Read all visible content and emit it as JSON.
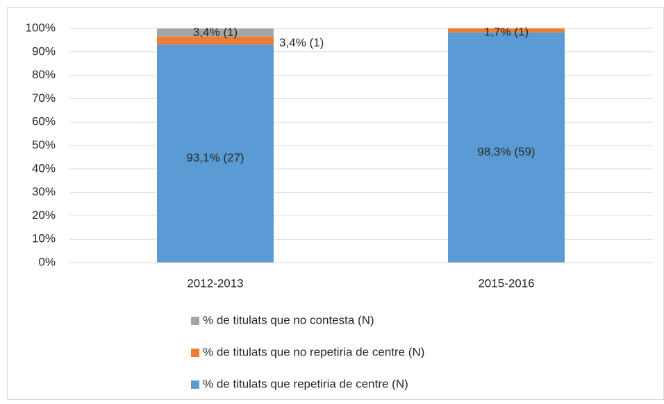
{
  "chart_data": {
    "type": "stacked_bar",
    "categories": [
      "2012-2013",
      "2015-2016"
    ],
    "series": [
      {
        "name": "% de titulats que repetiria de centre (N)",
        "color": "#5b9bd5",
        "values": [
          93.1,
          98.3
        ],
        "value_labels": [
          "93,1% (27)",
          "98,3% (59)"
        ]
      },
      {
        "name": "% de titulats que no repetiria de centre (N)",
        "color": "#ed7d31",
        "values": [
          3.4,
          1.7
        ],
        "value_labels": [
          "3,4% (1)",
          "1,7% (1)"
        ]
      },
      {
        "name": "% de titulats que no contesta (N)",
        "color": "#a5a5a5",
        "values": [
          3.4,
          null
        ],
        "value_labels": [
          "3,4% (1)",
          null
        ]
      }
    ],
    "ylim": [
      0,
      100
    ],
    "yticks": [
      {
        "value": 0,
        "label": "0%"
      },
      {
        "value": 10,
        "label": "10%"
      },
      {
        "value": 20,
        "label": "20%"
      },
      {
        "value": 30,
        "label": "30%"
      },
      {
        "value": 40,
        "label": "40%"
      },
      {
        "value": 50,
        "label": "50%"
      },
      {
        "value": 60,
        "label": "60%"
      },
      {
        "value": 70,
        "label": "70%"
      },
      {
        "value": 80,
        "label": "80%"
      },
      {
        "value": 90,
        "label": "90%"
      },
      {
        "value": 100,
        "label": "100%"
      }
    ],
    "grid": true
  }
}
